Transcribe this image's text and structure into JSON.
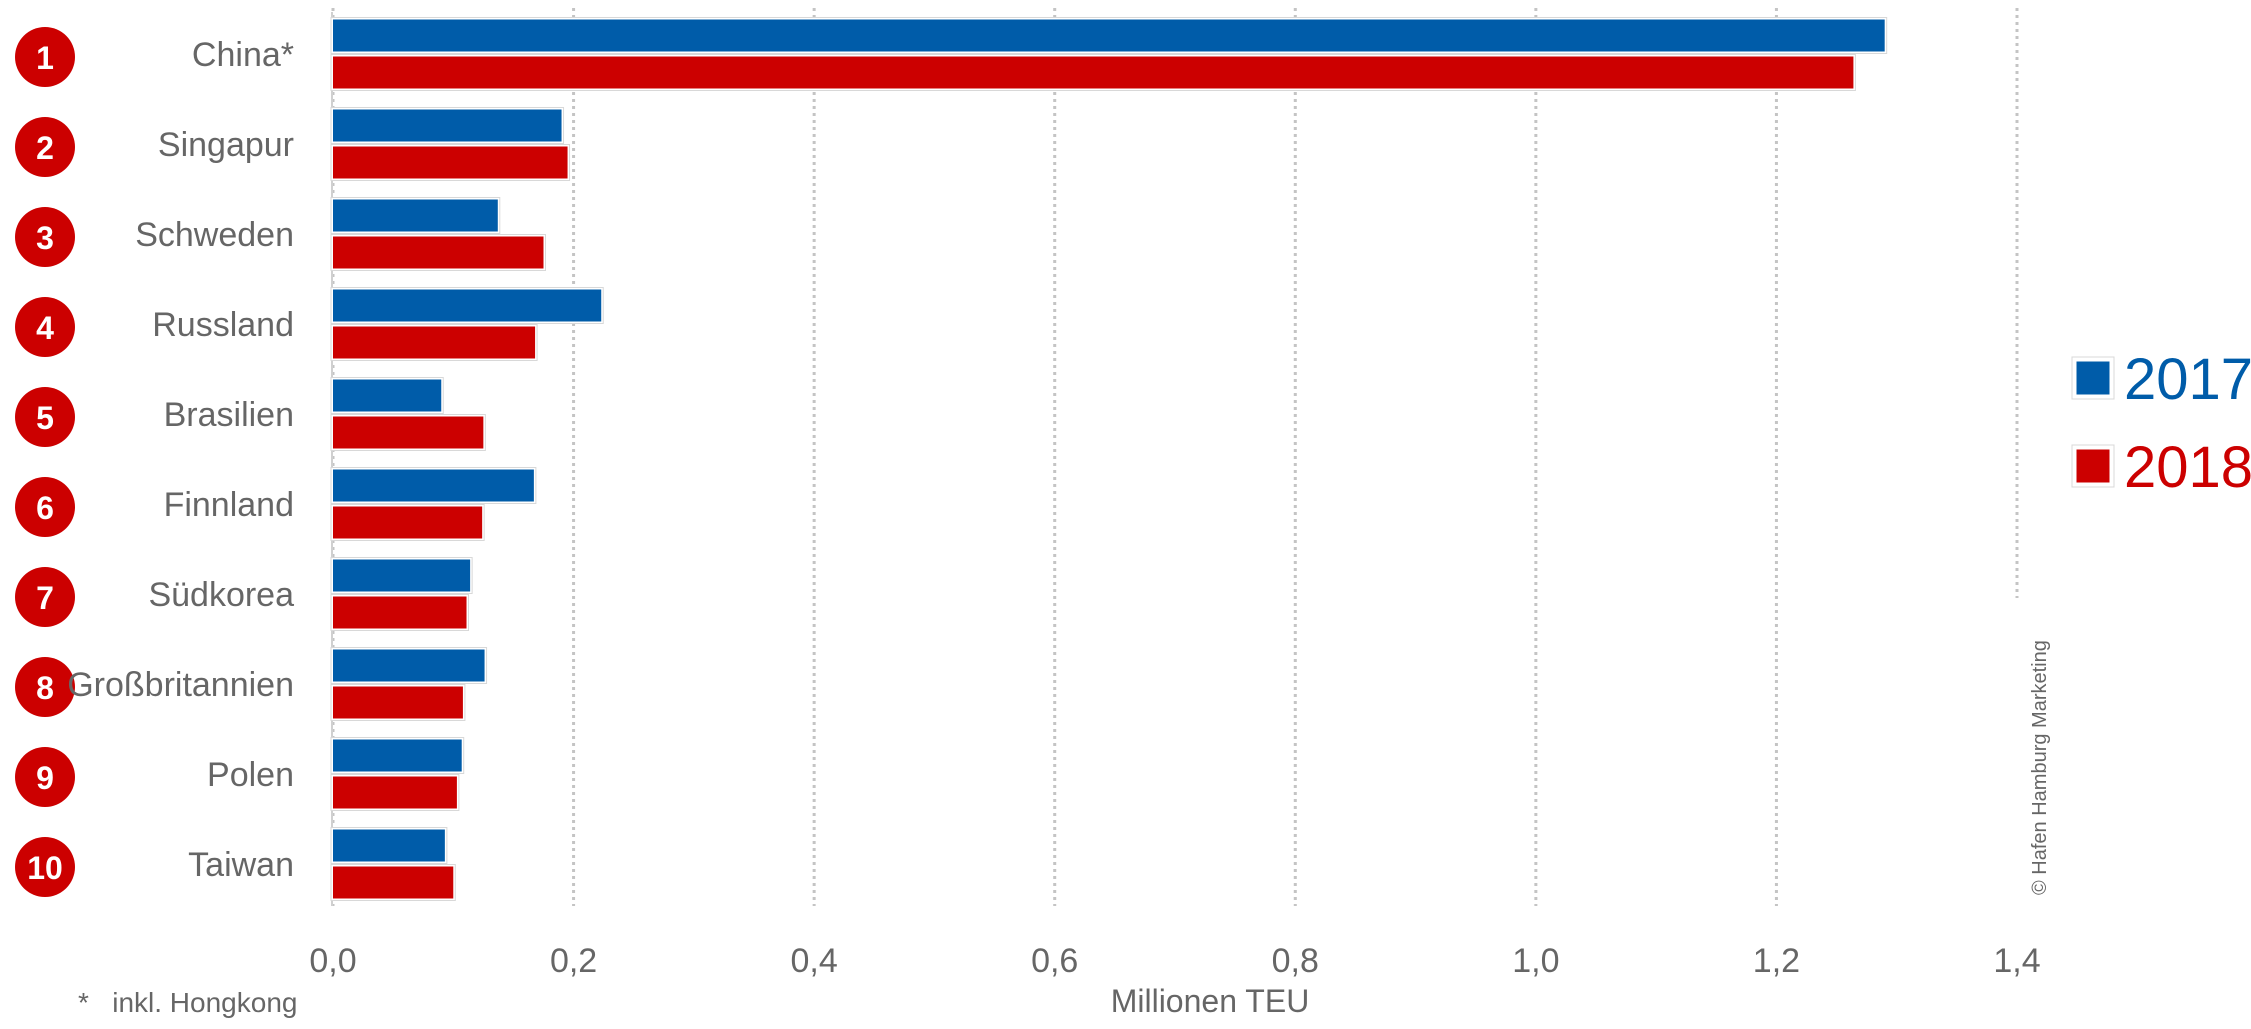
{
  "chart_data": {
    "type": "bar",
    "orientation": "horizontal",
    "categories": [
      "China*",
      "Singapur",
      "Schweden",
      "Russland",
      "Brasilien",
      "Finnland",
      "Südkorea",
      "Großbritannien",
      "Polen",
      "Taiwan"
    ],
    "ranks": [
      "1",
      "2",
      "3",
      "4",
      "5",
      "6",
      "7",
      "8",
      "9",
      "10"
    ],
    "series": [
      {
        "name": "2017",
        "color": "#005ca9",
        "values": [
          1.29,
          0.19,
          0.137,
          0.223,
          0.09,
          0.167,
          0.114,
          0.126,
          0.107,
          0.093
        ]
      },
      {
        "name": "2018",
        "color": "#cc0000",
        "values": [
          1.264,
          0.195,
          0.175,
          0.168,
          0.125,
          0.124,
          0.111,
          0.108,
          0.103,
          0.1
        ]
      }
    ],
    "xlabel": "Millionen TEU",
    "xlim": [
      0,
      1.4
    ],
    "xticks": [
      "0,0",
      "0,2",
      "0,4",
      "0,6",
      "0,8",
      "1,0",
      "1,2",
      "1,4"
    ],
    "grid": "vertical dotted",
    "legend_position": "right",
    "footnote": "*   inkl. Hongkong",
    "copyright": "© Hafen Hamburg Marketing"
  }
}
